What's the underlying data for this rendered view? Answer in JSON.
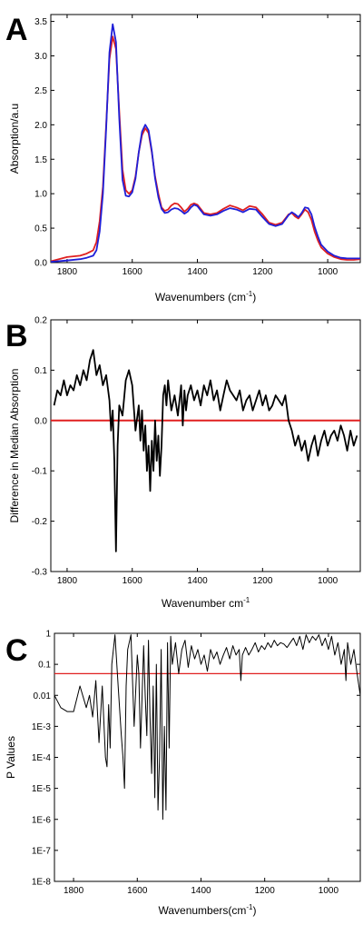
{
  "chart_data": [
    {
      "type": "line",
      "panel_label": "A",
      "xlabel": "Wavenumbers (cm",
      "xlabel_sup": "-1",
      "xlabel_tail": ")",
      "ylabel": "Absorption/a.u",
      "xlim": [
        1850,
        900
      ],
      "ylim": [
        0,
        3.6
      ],
      "x_ticks": [
        "1800",
        "1600",
        "1400",
        "1200",
        "1000"
      ],
      "y_ticks": [
        "0.0",
        "0.5",
        "1.0",
        "1.5",
        "2.0",
        "2.5",
        "3.0",
        "3.5"
      ],
      "colors": {
        "series_red": "#e02020",
        "series_blue": "#1f1fd8"
      },
      "series": [
        {
          "color": "#e02020",
          "x": [
            1850,
            1800,
            1760,
            1740,
            1720,
            1710,
            1700,
            1690,
            1680,
            1670,
            1660,
            1650,
            1640,
            1630,
            1620,
            1610,
            1600,
            1590,
            1580,
            1570,
            1560,
            1550,
            1540,
            1530,
            1520,
            1510,
            1500,
            1490,
            1480,
            1470,
            1460,
            1450,
            1440,
            1430,
            1420,
            1410,
            1400,
            1390,
            1380,
            1360,
            1340,
            1320,
            1300,
            1280,
            1260,
            1240,
            1220,
            1200,
            1180,
            1160,
            1140,
            1120,
            1110,
            1100,
            1090,
            1080,
            1070,
            1060,
            1050,
            1040,
            1030,
            1020,
            1000,
            980,
            960,
            940,
            920,
            900
          ],
          "y": [
            0.02,
            0.08,
            0.1,
            0.13,
            0.18,
            0.3,
            0.6,
            1.1,
            2.0,
            2.95,
            3.28,
            3.1,
            2.2,
            1.35,
            1.05,
            1.0,
            1.05,
            1.25,
            1.6,
            1.85,
            1.95,
            1.88,
            1.6,
            1.25,
            1.0,
            0.8,
            0.75,
            0.77,
            0.83,
            0.86,
            0.85,
            0.8,
            0.74,
            0.78,
            0.84,
            0.86,
            0.84,
            0.78,
            0.72,
            0.7,
            0.72,
            0.78,
            0.83,
            0.8,
            0.76,
            0.82,
            0.8,
            0.7,
            0.58,
            0.55,
            0.58,
            0.7,
            0.72,
            0.67,
            0.64,
            0.7,
            0.77,
            0.73,
            0.62,
            0.45,
            0.32,
            0.22,
            0.13,
            0.08,
            0.05,
            0.04,
            0.04,
            0.05
          ]
        },
        {
          "color": "#1f1fd8",
          "x": [
            1850,
            1800,
            1760,
            1740,
            1720,
            1710,
            1700,
            1690,
            1680,
            1670,
            1660,
            1650,
            1640,
            1630,
            1620,
            1610,
            1600,
            1590,
            1580,
            1570,
            1560,
            1550,
            1540,
            1530,
            1520,
            1510,
            1500,
            1490,
            1480,
            1470,
            1460,
            1450,
            1440,
            1430,
            1420,
            1410,
            1400,
            1390,
            1380,
            1360,
            1340,
            1320,
            1300,
            1280,
            1260,
            1240,
            1220,
            1200,
            1180,
            1160,
            1140,
            1120,
            1110,
            1100,
            1090,
            1080,
            1070,
            1060,
            1050,
            1040,
            1030,
            1020,
            1000,
            980,
            960,
            940,
            920,
            900
          ],
          "y": [
            0.01,
            0.03,
            0.05,
            0.07,
            0.1,
            0.18,
            0.45,
            1.0,
            1.95,
            3.05,
            3.46,
            3.2,
            2.1,
            1.2,
            0.97,
            0.96,
            1.02,
            1.22,
            1.6,
            1.9,
            2.0,
            1.92,
            1.62,
            1.22,
            0.95,
            0.78,
            0.72,
            0.73,
            0.77,
            0.79,
            0.78,
            0.75,
            0.71,
            0.74,
            0.8,
            0.84,
            0.82,
            0.76,
            0.7,
            0.68,
            0.7,
            0.75,
            0.79,
            0.77,
            0.73,
            0.78,
            0.77,
            0.66,
            0.56,
            0.53,
            0.56,
            0.69,
            0.73,
            0.7,
            0.66,
            0.72,
            0.8,
            0.79,
            0.7,
            0.52,
            0.38,
            0.26,
            0.16,
            0.1,
            0.07,
            0.06,
            0.06,
            0.06
          ]
        }
      ]
    },
    {
      "type": "line",
      "panel_label": "B",
      "xlabel": "Wavenumber cm",
      "xlabel_sup": "-1",
      "xlabel_tail": "",
      "ylabel": "Difference in Median Absorption",
      "xlim": [
        1850,
        900
      ],
      "ylim": [
        -0.3,
        0.2
      ],
      "x_ticks": [
        "1800",
        "1600",
        "1400",
        "1200",
        "1000"
      ],
      "y_ticks": [
        "-0.3",
        "-0.2",
        "-0.1",
        "0.0",
        "0.1",
        "0.2"
      ],
      "reference_line": {
        "y": 0.0,
        "color": "#e02020"
      },
      "series": [
        {
          "color": "#000000",
          "x": [
            1840,
            1830,
            1820,
            1810,
            1800,
            1790,
            1780,
            1770,
            1760,
            1750,
            1740,
            1730,
            1720,
            1710,
            1700,
            1690,
            1680,
            1670,
            1665,
            1660,
            1655,
            1650,
            1645,
            1640,
            1630,
            1620,
            1610,
            1600,
            1590,
            1580,
            1575,
            1570,
            1565,
            1560,
            1555,
            1550,
            1545,
            1540,
            1535,
            1530,
            1525,
            1520,
            1515,
            1510,
            1505,
            1500,
            1495,
            1490,
            1480,
            1470,
            1460,
            1450,
            1445,
            1440,
            1435,
            1430,
            1420,
            1410,
            1400,
            1390,
            1380,
            1370,
            1360,
            1350,
            1340,
            1330,
            1320,
            1310,
            1300,
            1290,
            1280,
            1270,
            1260,
            1250,
            1240,
            1230,
            1220,
            1210,
            1200,
            1190,
            1180,
            1170,
            1160,
            1150,
            1140,
            1130,
            1120,
            1110,
            1100,
            1090,
            1080,
            1070,
            1060,
            1050,
            1040,
            1030,
            1020,
            1010,
            1000,
            990,
            980,
            970,
            960,
            950,
            940,
            930,
            920,
            910
          ],
          "y": [
            0.03,
            0.06,
            0.05,
            0.08,
            0.05,
            0.07,
            0.06,
            0.09,
            0.07,
            0.1,
            0.08,
            0.12,
            0.14,
            0.09,
            0.11,
            0.07,
            0.09,
            0.04,
            -0.02,
            0.02,
            -0.08,
            -0.26,
            -0.05,
            0.03,
            0.01,
            0.08,
            0.1,
            0.07,
            -0.02,
            0.03,
            -0.04,
            0.02,
            -0.06,
            -0.01,
            -0.1,
            -0.05,
            -0.14,
            -0.04,
            -0.1,
            0.0,
            -0.08,
            -0.03,
            -0.11,
            -0.05,
            0.05,
            0.07,
            0.03,
            0.08,
            0.02,
            0.05,
            0.01,
            0.07,
            -0.01,
            0.06,
            0.02,
            0.05,
            0.07,
            0.04,
            0.06,
            0.03,
            0.07,
            0.05,
            0.08,
            0.04,
            0.06,
            0.02,
            0.05,
            0.08,
            0.06,
            0.05,
            0.04,
            0.06,
            0.02,
            0.04,
            0.05,
            0.02,
            0.04,
            0.06,
            0.03,
            0.05,
            0.02,
            0.03,
            0.05,
            0.04,
            0.03,
            0.05,
            0.0,
            -0.02,
            -0.05,
            -0.03,
            -0.06,
            -0.04,
            -0.08,
            -0.05,
            -0.03,
            -0.07,
            -0.04,
            -0.02,
            -0.05,
            -0.03,
            -0.02,
            -0.04,
            -0.01,
            -0.03,
            -0.06,
            -0.02,
            -0.05,
            -0.03
          ]
        }
      ]
    },
    {
      "type": "line",
      "panel_label": "C",
      "xlabel": "Wavenumbers(cm",
      "xlabel_sup": "-1",
      "xlabel_tail": ")",
      "ylabel": "P Values",
      "xlim": [
        1860,
        900
      ],
      "y_scale": "log",
      "ylim": [
        1e-08,
        1
      ],
      "x_ticks": [
        "1800",
        "1600",
        "1400",
        "1200",
        "1000"
      ],
      "y_ticks": [
        "1",
        "0.1",
        "0.01",
        "1E-3",
        "1E-4",
        "1E-5",
        "1E-6",
        "1E-7",
        "1E-8"
      ],
      "reference_line": {
        "y": 0.05,
        "color": "#e02020"
      },
      "series": [
        {
          "color": "#000000",
          "x": [
            1860,
            1840,
            1820,
            1800,
            1780,
            1760,
            1750,
            1740,
            1730,
            1720,
            1710,
            1700,
            1695,
            1690,
            1685,
            1680,
            1670,
            1660,
            1650,
            1645,
            1640,
            1635,
            1630,
            1620,
            1610,
            1600,
            1595,
            1590,
            1580,
            1575,
            1570,
            1565,
            1560,
            1555,
            1550,
            1545,
            1540,
            1535,
            1530,
            1525,
            1520,
            1515,
            1510,
            1505,
            1500,
            1495,
            1490,
            1480,
            1470,
            1460,
            1450,
            1440,
            1430,
            1420,
            1410,
            1400,
            1390,
            1380,
            1370,
            1360,
            1350,
            1340,
            1330,
            1320,
            1310,
            1300,
            1290,
            1280,
            1275,
            1270,
            1260,
            1250,
            1240,
            1230,
            1220,
            1210,
            1200,
            1190,
            1180,
            1170,
            1160,
            1150,
            1140,
            1130,
            1120,
            1110,
            1100,
            1090,
            1080,
            1070,
            1060,
            1050,
            1040,
            1030,
            1020,
            1010,
            1000,
            990,
            980,
            970,
            960,
            950,
            945,
            940,
            930,
            920,
            910,
            900
          ],
          "y": [
            0.01,
            0.004,
            0.003,
            0.003,
            0.02,
            0.004,
            0.01,
            0.002,
            0.03,
            0.0003,
            0.02,
            0.0001,
            5e-05,
            0.005,
            0.0002,
            0.1,
            0.9,
            0.02,
            0.0005,
            0.0001,
            1e-05,
            0.02,
            0.3,
            0.9,
            0.001,
            0.2,
            0.05,
            0.0002,
            0.4,
            0.01,
            0.0005,
            0.6,
            0.002,
            3e-05,
            0.02,
            5e-06,
            0.1,
            2e-06,
            0.0001,
            0.3,
            1e-06,
            0.001,
            2e-06,
            0.5,
            0.0002,
            0.8,
            0.1,
            0.5,
            0.05,
            0.3,
            0.6,
            0.08,
            0.4,
            0.15,
            0.3,
            0.1,
            0.2,
            0.06,
            0.3,
            0.15,
            0.25,
            0.1,
            0.2,
            0.35,
            0.15,
            0.4,
            0.2,
            0.3,
            0.03,
            0.2,
            0.35,
            0.2,
            0.3,
            0.5,
            0.25,
            0.4,
            0.3,
            0.5,
            0.35,
            0.6,
            0.4,
            0.5,
            0.45,
            0.35,
            0.5,
            0.7,
            0.4,
            0.8,
            0.3,
            0.9,
            0.5,
            0.8,
            0.6,
            0.9,
            0.4,
            0.7,
            0.3,
            0.8,
            0.2,
            0.5,
            0.1,
            0.3,
            0.03,
            0.5,
            0.1,
            0.3,
            0.05,
            0.01
          ]
        }
      ]
    }
  ]
}
